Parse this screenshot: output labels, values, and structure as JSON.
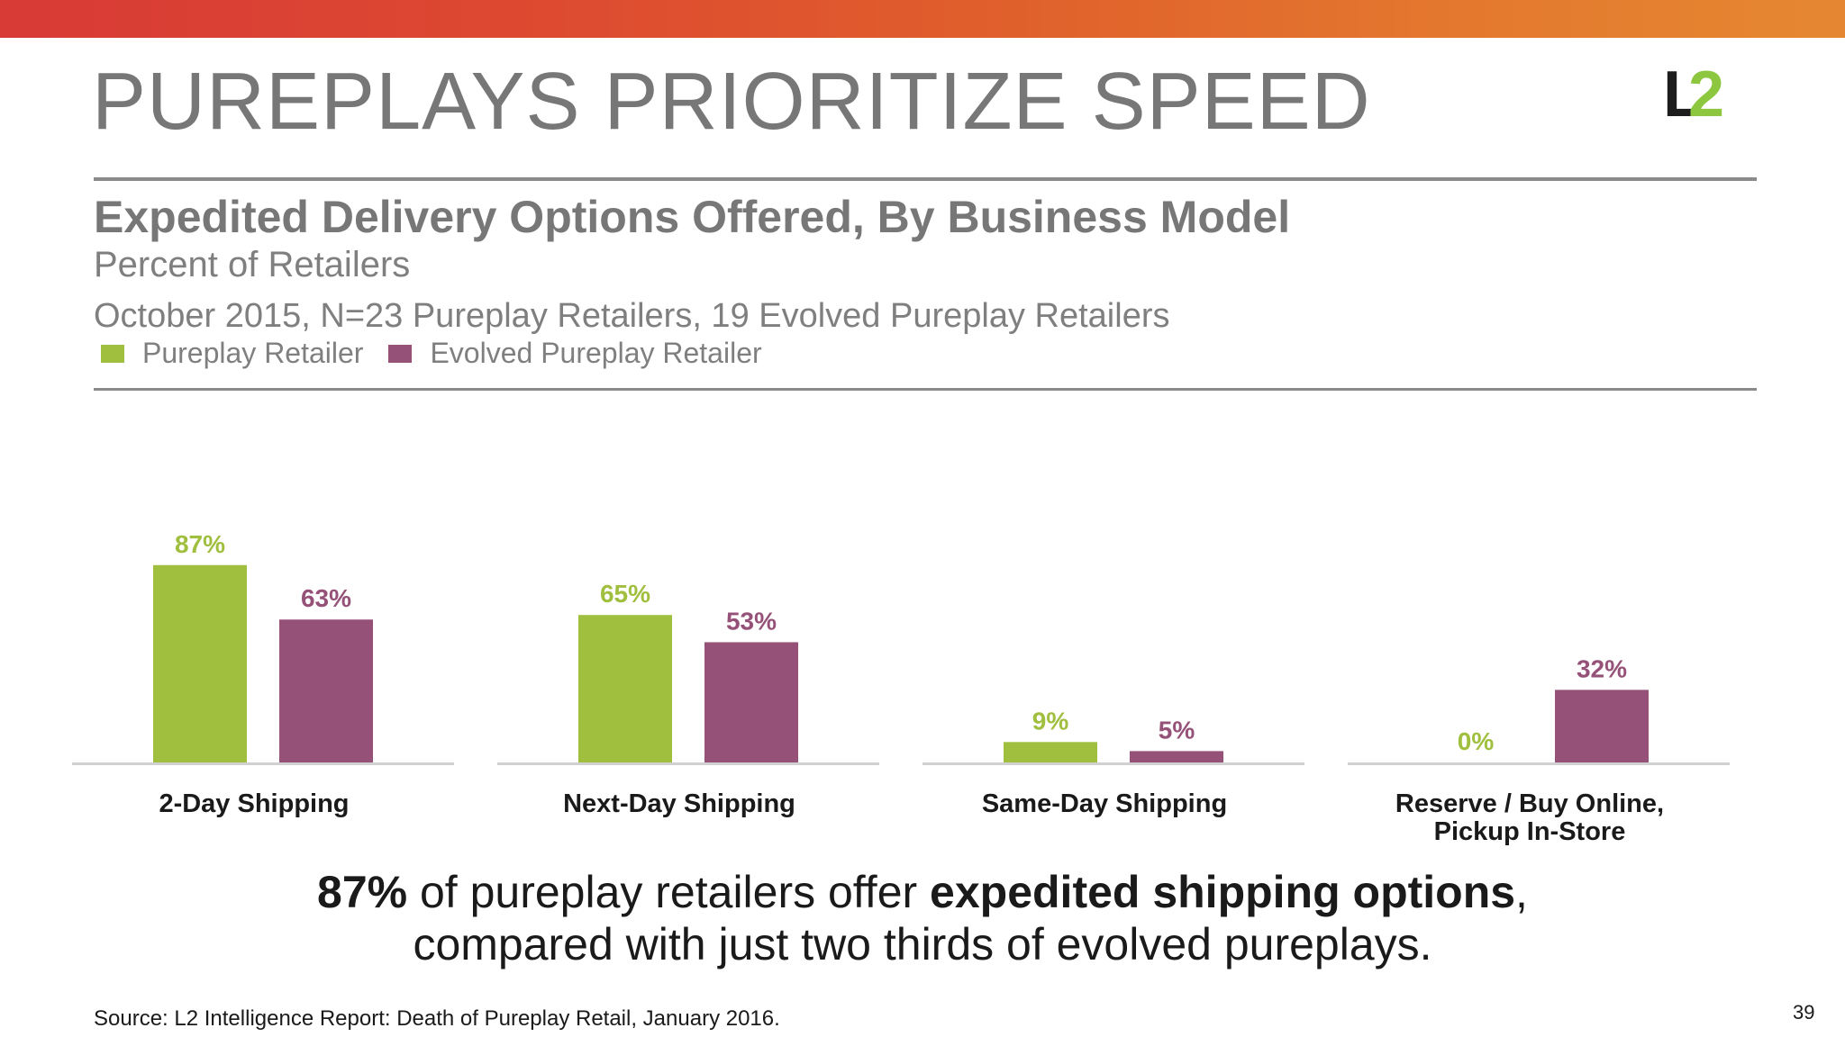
{
  "slide": {
    "title": "PUREPLAYS PRIORITIZE SPEED",
    "logo": {
      "part1": "L",
      "part2": "2"
    },
    "page_number": "39",
    "source": "Source: L2 Intelligence Report: Death of Pureplay Retail, January 2016."
  },
  "caption": {
    "line1_strong": "87%",
    "line1_mid": " of pureplay retailers offer ",
    "line1_strong2": "expedited shipping options",
    "line1_end": ",",
    "line2": "compared with just two thirds of evolved pureplays."
  },
  "colors": {
    "pureplay": "#a0bf3f",
    "evolved": "#955177",
    "banner": "#e0602c"
  },
  "chart_data": {
    "type": "bar",
    "title": "Expedited Delivery Options Offered, By Business Model",
    "subtitle": "Percent of Retailers",
    "note": "October 2015, N=23 Pureplay Retailers, 19 Evolved Pureplay Retailers",
    "categories": [
      [
        "2-Day Shipping"
      ],
      [
        "Next-Day Shipping"
      ],
      [
        "Same-Day Shipping"
      ],
      [
        "Reserve / Buy Online,",
        "Pickup In-Store"
      ]
    ],
    "series": [
      {
        "name": "Pureplay Retailer",
        "values": [
          87,
          65,
          9,
          0
        ],
        "labels": [
          "87%",
          "65%",
          "9%",
          "0%"
        ],
        "color": "#a0bf3f"
      },
      {
        "name": "Evolved Pureplay Retailer",
        "values": [
          63,
          53,
          5,
          32
        ],
        "labels": [
          "63%",
          "53%",
          "5%",
          "32%"
        ],
        "color": "#955177"
      }
    ],
    "ylim": [
      0,
      100
    ],
    "legend": "top-left",
    "grid": false
  }
}
